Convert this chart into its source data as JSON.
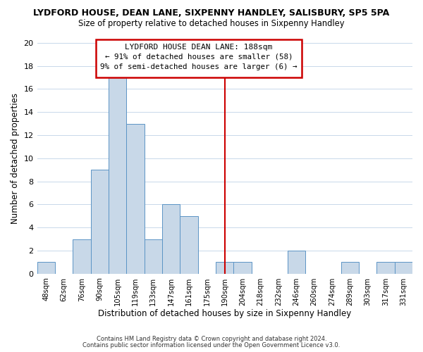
{
  "title": "LYDFORD HOUSE, DEAN LANE, SIXPENNY HANDLEY, SALISBURY, SP5 5PA",
  "subtitle": "Size of property relative to detached houses in Sixpenny Handley",
  "xlabel": "Distribution of detached houses by size in Sixpenny Handley",
  "ylabel": "Number of detached properties",
  "bar_labels": [
    "48sqm",
    "62sqm",
    "76sqm",
    "90sqm",
    "105sqm",
    "119sqm",
    "133sqm",
    "147sqm",
    "161sqm",
    "175sqm",
    "190sqm",
    "204sqm",
    "218sqm",
    "232sqm",
    "246sqm",
    "260sqm",
    "274sqm",
    "289sqm",
    "303sqm",
    "317sqm",
    "331sqm"
  ],
  "bar_values": [
    1,
    0,
    3,
    9,
    17,
    13,
    3,
    6,
    5,
    0,
    1,
    1,
    0,
    0,
    2,
    0,
    0,
    1,
    0,
    1,
    1
  ],
  "bar_color": "#c8d8e8",
  "bar_edge_color": "#5b94c5",
  "vline_x_index": 10,
  "vline_color": "#cc0000",
  "ylim": [
    0,
    20
  ],
  "yticks": [
    0,
    2,
    4,
    6,
    8,
    10,
    12,
    14,
    16,
    18,
    20
  ],
  "annotation_title": "LYDFORD HOUSE DEAN LANE: 188sqm",
  "annotation_line1": "← 91% of detached houses are smaller (58)",
  "annotation_line2": "9% of semi-detached houses are larger (6) →",
  "annotation_box_color": "#ffffff",
  "annotation_box_edge": "#cc0000",
  "footer_line1": "Contains HM Land Registry data © Crown copyright and database right 2024.",
  "footer_line2": "Contains public sector information licensed under the Open Government Licence v3.0.",
  "bg_color": "#ffffff",
  "grid_color": "#c8d8ea"
}
